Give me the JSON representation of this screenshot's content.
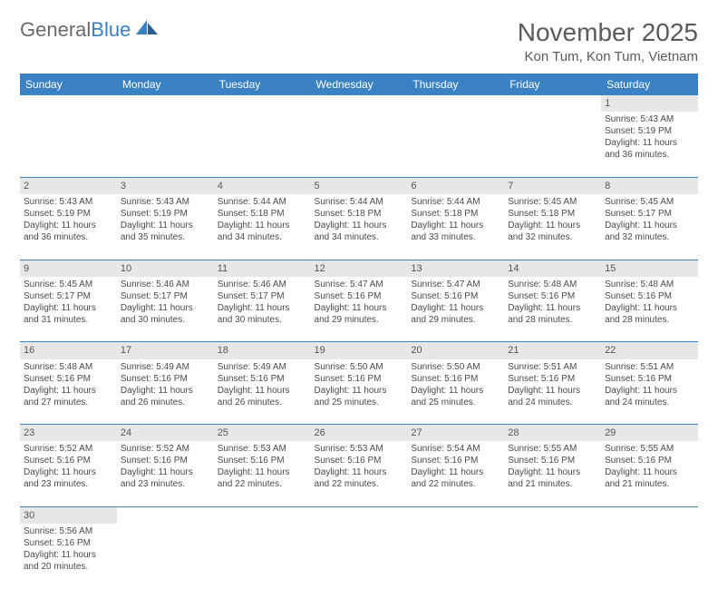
{
  "logo": {
    "text1": "General",
    "text2": "Blue"
  },
  "title": "November 2025",
  "location": "Kon Tum, Kon Tum, Vietnam",
  "colors": {
    "header_bg": "#3a82c4",
    "header_text": "#ffffff",
    "daynum_bg": "#e7e7e7",
    "cell_border": "#3a82c4",
    "body_text": "#4a4a4a",
    "title_text": "#5a5a5a",
    "logo_gray": "#6a6a6a",
    "logo_blue": "#3a7fc0"
  },
  "typography": {
    "title_fontsize": 28,
    "location_fontsize": 15,
    "weekday_fontsize": 12,
    "daynum_fontsize": 11,
    "cell_fontsize": 10
  },
  "weekdays": [
    "Sunday",
    "Monday",
    "Tuesday",
    "Wednesday",
    "Thursday",
    "Friday",
    "Saturday"
  ],
  "weeks": [
    [
      null,
      null,
      null,
      null,
      null,
      null,
      {
        "n": "1",
        "sunrise": "5:43 AM",
        "sunset": "5:19 PM",
        "dl1": "Daylight: 11 hours",
        "dl2": "and 36 minutes."
      }
    ],
    [
      {
        "n": "2",
        "sunrise": "5:43 AM",
        "sunset": "5:19 PM",
        "dl1": "Daylight: 11 hours",
        "dl2": "and 36 minutes."
      },
      {
        "n": "3",
        "sunrise": "5:43 AM",
        "sunset": "5:19 PM",
        "dl1": "Daylight: 11 hours",
        "dl2": "and 35 minutes."
      },
      {
        "n": "4",
        "sunrise": "5:44 AM",
        "sunset": "5:18 PM",
        "dl1": "Daylight: 11 hours",
        "dl2": "and 34 minutes."
      },
      {
        "n": "5",
        "sunrise": "5:44 AM",
        "sunset": "5:18 PM",
        "dl1": "Daylight: 11 hours",
        "dl2": "and 34 minutes."
      },
      {
        "n": "6",
        "sunrise": "5:44 AM",
        "sunset": "5:18 PM",
        "dl1": "Daylight: 11 hours",
        "dl2": "and 33 minutes."
      },
      {
        "n": "7",
        "sunrise": "5:45 AM",
        "sunset": "5:18 PM",
        "dl1": "Daylight: 11 hours",
        "dl2": "and 32 minutes."
      },
      {
        "n": "8",
        "sunrise": "5:45 AM",
        "sunset": "5:17 PM",
        "dl1": "Daylight: 11 hours",
        "dl2": "and 32 minutes."
      }
    ],
    [
      {
        "n": "9",
        "sunrise": "5:45 AM",
        "sunset": "5:17 PM",
        "dl1": "Daylight: 11 hours",
        "dl2": "and 31 minutes."
      },
      {
        "n": "10",
        "sunrise": "5:46 AM",
        "sunset": "5:17 PM",
        "dl1": "Daylight: 11 hours",
        "dl2": "and 30 minutes."
      },
      {
        "n": "11",
        "sunrise": "5:46 AM",
        "sunset": "5:17 PM",
        "dl1": "Daylight: 11 hours",
        "dl2": "and 30 minutes."
      },
      {
        "n": "12",
        "sunrise": "5:47 AM",
        "sunset": "5:16 PM",
        "dl1": "Daylight: 11 hours",
        "dl2": "and 29 minutes."
      },
      {
        "n": "13",
        "sunrise": "5:47 AM",
        "sunset": "5:16 PM",
        "dl1": "Daylight: 11 hours",
        "dl2": "and 29 minutes."
      },
      {
        "n": "14",
        "sunrise": "5:48 AM",
        "sunset": "5:16 PM",
        "dl1": "Daylight: 11 hours",
        "dl2": "and 28 minutes."
      },
      {
        "n": "15",
        "sunrise": "5:48 AM",
        "sunset": "5:16 PM",
        "dl1": "Daylight: 11 hours",
        "dl2": "and 28 minutes."
      }
    ],
    [
      {
        "n": "16",
        "sunrise": "5:48 AM",
        "sunset": "5:16 PM",
        "dl1": "Daylight: 11 hours",
        "dl2": "and 27 minutes."
      },
      {
        "n": "17",
        "sunrise": "5:49 AM",
        "sunset": "5:16 PM",
        "dl1": "Daylight: 11 hours",
        "dl2": "and 26 minutes."
      },
      {
        "n": "18",
        "sunrise": "5:49 AM",
        "sunset": "5:16 PM",
        "dl1": "Daylight: 11 hours",
        "dl2": "and 26 minutes."
      },
      {
        "n": "19",
        "sunrise": "5:50 AM",
        "sunset": "5:16 PM",
        "dl1": "Daylight: 11 hours",
        "dl2": "and 25 minutes."
      },
      {
        "n": "20",
        "sunrise": "5:50 AM",
        "sunset": "5:16 PM",
        "dl1": "Daylight: 11 hours",
        "dl2": "and 25 minutes."
      },
      {
        "n": "21",
        "sunrise": "5:51 AM",
        "sunset": "5:16 PM",
        "dl1": "Daylight: 11 hours",
        "dl2": "and 24 minutes."
      },
      {
        "n": "22",
        "sunrise": "5:51 AM",
        "sunset": "5:16 PM",
        "dl1": "Daylight: 11 hours",
        "dl2": "and 24 minutes."
      }
    ],
    [
      {
        "n": "23",
        "sunrise": "5:52 AM",
        "sunset": "5:16 PM",
        "dl1": "Daylight: 11 hours",
        "dl2": "and 23 minutes."
      },
      {
        "n": "24",
        "sunrise": "5:52 AM",
        "sunset": "5:16 PM",
        "dl1": "Daylight: 11 hours",
        "dl2": "and 23 minutes."
      },
      {
        "n": "25",
        "sunrise": "5:53 AM",
        "sunset": "5:16 PM",
        "dl1": "Daylight: 11 hours",
        "dl2": "and 22 minutes."
      },
      {
        "n": "26",
        "sunrise": "5:53 AM",
        "sunset": "5:16 PM",
        "dl1": "Daylight: 11 hours",
        "dl2": "and 22 minutes."
      },
      {
        "n": "27",
        "sunrise": "5:54 AM",
        "sunset": "5:16 PM",
        "dl1": "Daylight: 11 hours",
        "dl2": "and 22 minutes."
      },
      {
        "n": "28",
        "sunrise": "5:55 AM",
        "sunset": "5:16 PM",
        "dl1": "Daylight: 11 hours",
        "dl2": "and 21 minutes."
      },
      {
        "n": "29",
        "sunrise": "5:55 AM",
        "sunset": "5:16 PM",
        "dl1": "Daylight: 11 hours",
        "dl2": "and 21 minutes."
      }
    ],
    [
      {
        "n": "30",
        "sunrise": "5:56 AM",
        "sunset": "5:16 PM",
        "dl1": "Daylight: 11 hours",
        "dl2": "and 20 minutes."
      },
      null,
      null,
      null,
      null,
      null,
      null
    ]
  ],
  "labels": {
    "sunrise_prefix": "Sunrise: ",
    "sunset_prefix": "Sunset: "
  }
}
